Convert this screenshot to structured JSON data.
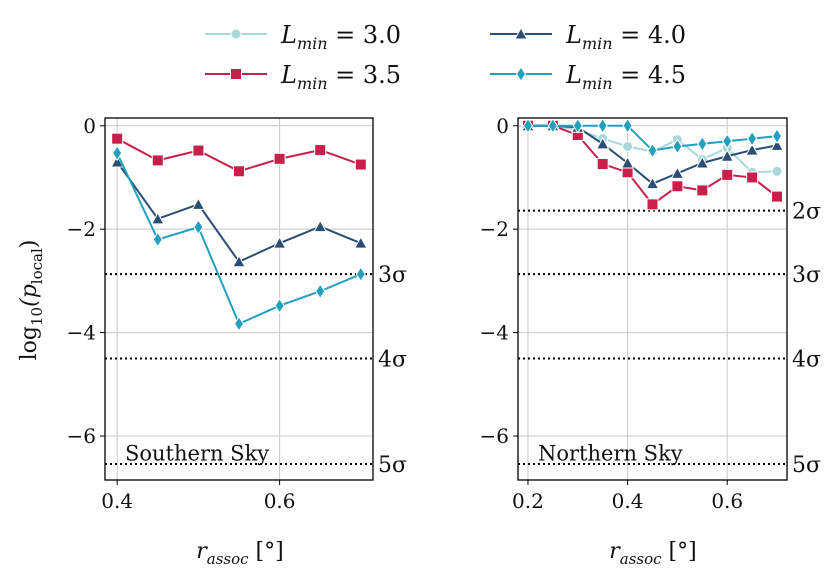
{
  "chart_data": [
    {
      "type": "line",
      "title": "Southern Sky",
      "xlabel": "r_assoc [°]",
      "ylabel": "log10(p_local)",
      "xlim": [
        0.385,
        0.715
      ],
      "ylim": [
        -6.85,
        0.15
      ],
      "xticks": [
        0.4,
        0.6
      ],
      "xtick_labels": [
        "0.4",
        "0.6"
      ],
      "yticks": [
        0,
        -2,
        -4,
        -6
      ],
      "ytick_labels": [
        "0",
        "−2",
        "−4",
        "−6"
      ],
      "grid": true,
      "sigma_lines": [
        {
          "label": "3σ",
          "value": -2.87
        },
        {
          "label": "4σ",
          "value": -4.5
        },
        {
          "label": "5σ",
          "value": -6.54
        }
      ],
      "series": [
        {
          "name": "L_min = 3.5",
          "color": "#c8204a",
          "marker": "square",
          "x": [
            0.4,
            0.45,
            0.5,
            0.55,
            0.6,
            0.65,
            0.7
          ],
          "y": [
            -0.25,
            -0.67,
            -0.48,
            -0.88,
            -0.64,
            -0.47,
            -0.75
          ]
        },
        {
          "name": "L_min = 4.0",
          "color": "#2a4e74",
          "marker": "triangle",
          "x": [
            0.4,
            0.45,
            0.5,
            0.55,
            0.6,
            0.65,
            0.7
          ],
          "y": [
            -0.7,
            -1.8,
            -1.52,
            -2.63,
            -2.27,
            -1.95,
            -2.27
          ]
        },
        {
          "name": "L_min = 4.5",
          "color": "#22a0be",
          "marker": "diamond",
          "x": [
            0.4,
            0.45,
            0.5,
            0.55,
            0.6,
            0.65,
            0.7
          ],
          "y": [
            -0.53,
            -2.2,
            -1.96,
            -3.83,
            -3.48,
            -3.2,
            -2.87
          ]
        }
      ]
    },
    {
      "type": "line",
      "title": "Northern Sky",
      "xlabel": "r_assoc [°]",
      "ylabel": "",
      "xlim": [
        0.18,
        0.72
      ],
      "ylim": [
        -6.85,
        0.15
      ],
      "xticks": [
        0.2,
        0.4,
        0.6
      ],
      "xtick_labels": [
        "0.2",
        "0.4",
        "0.6"
      ],
      "yticks": [
        0,
        -2,
        -4,
        -6
      ],
      "ytick_labels": [
        "0",
        "−2",
        "−4",
        "−6"
      ],
      "grid": true,
      "sigma_lines": [
        {
          "label": "2σ",
          "value": -1.64
        },
        {
          "label": "3σ",
          "value": -2.87
        },
        {
          "label": "4σ",
          "value": -4.5
        },
        {
          "label": "5σ",
          "value": -6.54
        }
      ],
      "series": [
        {
          "name": "L_min = 3.0",
          "color": "#a8d8dc",
          "marker": "circle",
          "x": [
            0.2,
            0.25,
            0.3,
            0.35,
            0.4,
            0.45,
            0.5,
            0.55,
            0.6,
            0.65,
            0.7
          ],
          "y": [
            0,
            0,
            -0.08,
            -0.25,
            -0.4,
            -0.5,
            -0.27,
            -0.65,
            -0.43,
            -0.9,
            -0.88
          ]
        },
        {
          "name": "L_min = 3.5",
          "color": "#c8204a",
          "marker": "square",
          "x": [
            0.2,
            0.25,
            0.3,
            0.35,
            0.4,
            0.45,
            0.5,
            0.55,
            0.6,
            0.65,
            0.7
          ],
          "y": [
            0,
            0,
            -0.18,
            -0.74,
            -0.9,
            -1.52,
            -1.17,
            -1.25,
            -0.95,
            -1.0,
            -1.37
          ]
        },
        {
          "name": "L_min = 4.0",
          "color": "#2a4e74",
          "marker": "triangle",
          "x": [
            0.2,
            0.25,
            0.3,
            0.35,
            0.4,
            0.45,
            0.5,
            0.55,
            0.6,
            0.65,
            0.7
          ],
          "y": [
            0,
            0,
            -0.03,
            -0.35,
            -0.72,
            -1.12,
            -0.92,
            -0.72,
            -0.59,
            -0.47,
            -0.38
          ]
        },
        {
          "name": "L_min = 4.5",
          "color": "#22a0be",
          "marker": "diamond",
          "x": [
            0.2,
            0.25,
            0.3,
            0.35,
            0.4,
            0.45,
            0.5,
            0.55,
            0.6,
            0.65,
            0.7
          ],
          "y": [
            0,
            0,
            0,
            0,
            0,
            -0.48,
            -0.4,
            -0.35,
            -0.3,
            -0.25,
            -0.2
          ]
        }
      ]
    }
  ],
  "legend": [
    {
      "name": "L",
      "sub": "min",
      "eq": " = 3.0",
      "color": "#a8d8dc",
      "marker": "circle"
    },
    {
      "name": "L",
      "sub": "min",
      "eq": " = 3.5",
      "color": "#c8204a",
      "marker": "square"
    },
    {
      "name": "L",
      "sub": "min",
      "eq": " = 4.0",
      "color": "#2a4e74",
      "marker": "triangle"
    },
    {
      "name": "L",
      "sub": "min",
      "eq": " = 4.5",
      "color": "#22a0be",
      "marker": "diamond"
    }
  ],
  "axes_text": {
    "ylabel_main": "log",
    "ylabel_sub": "10",
    "ylabel_arg": "(p",
    "ylabel_argsub": "local",
    "ylabel_close": ")",
    "xlabel_var": "r",
    "xlabel_sub": "assoc",
    "xlabel_unit": " [°]"
  }
}
